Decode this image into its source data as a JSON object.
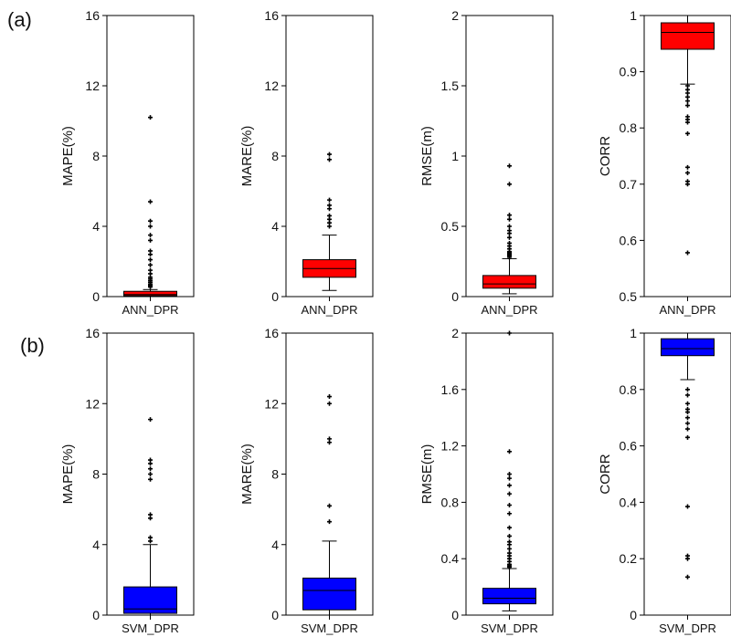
{
  "panels": [
    {
      "label": "(a)",
      "color": "#ff0000"
    },
    {
      "label": "(b)",
      "color": "#0000ff"
    }
  ],
  "chart_data": [
    {
      "type": "box",
      "panel": "(a)",
      "category": "ANN_DPR",
      "ylabel": "MAPE(%)",
      "ylim": [
        0,
        16
      ],
      "yticks": [
        "0",
        "4",
        "8",
        "12",
        "16"
      ],
      "color": "#ff0000",
      "box": {
        "whisker_low": 0.0,
        "q1": 0.05,
        "median": 0.12,
        "q3": 0.3,
        "whisker_high": 0.4
      },
      "outliers": [
        10.2,
        5.4,
        4.3,
        4.0,
        3.5,
        3.2,
        2.6,
        2.4,
        2.1,
        1.8,
        1.5,
        1.3,
        1.1,
        1.0,
        0.9,
        0.8,
        0.7,
        0.65,
        0.6,
        0.55
      ]
    },
    {
      "type": "box",
      "panel": "(a)",
      "category": "ANN_DPR",
      "ylabel": "MARE(%)",
      "ylim": [
        0,
        16
      ],
      "yticks": [
        "0",
        "4",
        "8",
        "12",
        "16"
      ],
      "color": "#ff0000",
      "box": {
        "whisker_low": 0.35,
        "q1": 1.1,
        "median": 1.6,
        "q3": 2.1,
        "whisker_high": 3.5
      },
      "outliers": [
        8.1,
        7.8,
        5.5,
        5.2,
        5.0,
        4.6,
        4.4,
        4.2,
        4.0
      ]
    },
    {
      "type": "box",
      "panel": "(a)",
      "category": "ANN_DPR",
      "ylabel": "RMSE(m)",
      "ylim": [
        0,
        2
      ],
      "yticks": [
        "0",
        "0.5",
        "1",
        "1.5",
        "2"
      ],
      "color": "#ff0000",
      "box": {
        "whisker_low": 0.02,
        "q1": 0.06,
        "median": 0.09,
        "q3": 0.15,
        "whisker_high": 0.27
      },
      "outliers": [
        0.93,
        0.8,
        0.58,
        0.55,
        0.5,
        0.47,
        0.45,
        0.42,
        0.38,
        0.36,
        0.34,
        0.32,
        0.31,
        0.3,
        0.29,
        0.28
      ]
    },
    {
      "type": "box",
      "panel": "(a)",
      "category": "ANN_DPR",
      "ylabel": "CORR",
      "ylim": [
        0.5,
        1
      ],
      "yticks": [
        "0.5",
        "0.6",
        "0.7",
        "0.8",
        "0.9",
        "1"
      ],
      "color": "#ff0000",
      "box": {
        "whisker_low": 0.878,
        "q1": 0.94,
        "median": 0.97,
        "q3": 0.987,
        "whisker_high": 1.0
      },
      "outliers": [
        0.875,
        0.868,
        0.862,
        0.855,
        0.848,
        0.84,
        0.82,
        0.815,
        0.81,
        0.79,
        0.73,
        0.72,
        0.705,
        0.7,
        0.578
      ]
    },
    {
      "type": "box",
      "panel": "(b)",
      "category": "SVM_DPR",
      "ylabel": "MAPE(%)",
      "ylim": [
        0,
        16
      ],
      "yticks": [
        "0",
        "4",
        "8",
        "12",
        "16"
      ],
      "color": "#0000ff",
      "box": {
        "whisker_low": 0.0,
        "q1": 0.1,
        "median": 0.35,
        "q3": 1.6,
        "whisker_high": 4.0
      },
      "outliers": [
        11.1,
        8.8,
        8.6,
        8.3,
        8.0,
        7.7,
        5.7,
        5.5,
        4.4,
        4.2
      ]
    },
    {
      "type": "box",
      "panel": "(b)",
      "category": "SVM_DPR",
      "ylabel": "MARE(%)",
      "ylim": [
        0,
        16
      ],
      "yticks": [
        "0",
        "4",
        "8",
        "12",
        "16"
      ],
      "color": "#0000ff",
      "box": {
        "whisker_low": 0.0,
        "q1": 0.3,
        "median": 1.4,
        "q3": 2.1,
        "whisker_high": 4.2
      },
      "outliers": [
        12.4,
        12.0,
        10.0,
        9.8,
        6.2,
        5.3
      ]
    },
    {
      "type": "box",
      "panel": "(b)",
      "category": "SVM_DPR",
      "ylabel": "RMSE(m)",
      "ylim": [
        0,
        2
      ],
      "yticks": [
        "0",
        "0.4",
        "0.8",
        "1.2",
        "1.6",
        "2"
      ],
      "color": "#0000ff",
      "box": {
        "whisker_low": 0.03,
        "q1": 0.08,
        "median": 0.12,
        "q3": 0.19,
        "whisker_high": 0.33
      },
      "outliers": [
        2.0,
        1.16,
        1.0,
        0.97,
        0.92,
        0.86,
        0.78,
        0.72,
        0.62,
        0.56,
        0.52,
        0.5,
        0.47,
        0.44,
        0.42,
        0.4,
        0.38,
        0.36,
        0.35,
        0.34
      ]
    },
    {
      "type": "box",
      "panel": "(b)",
      "category": "SVM_DPR",
      "ylabel": "CORR",
      "ylim": [
        0,
        1
      ],
      "yticks": [
        "0",
        "0.2",
        "0.4",
        "0.6",
        "0.8",
        "1"
      ],
      "color": "#0000ff",
      "box": {
        "whisker_low": 0.835,
        "q1": 0.92,
        "median": 0.945,
        "q3": 0.98,
        "whisker_high": 1.0
      },
      "outliers": [
        0.8,
        0.78,
        0.75,
        0.73,
        0.72,
        0.7,
        0.68,
        0.66,
        0.63,
        0.385,
        0.21,
        0.2,
        0.135
      ]
    }
  ]
}
